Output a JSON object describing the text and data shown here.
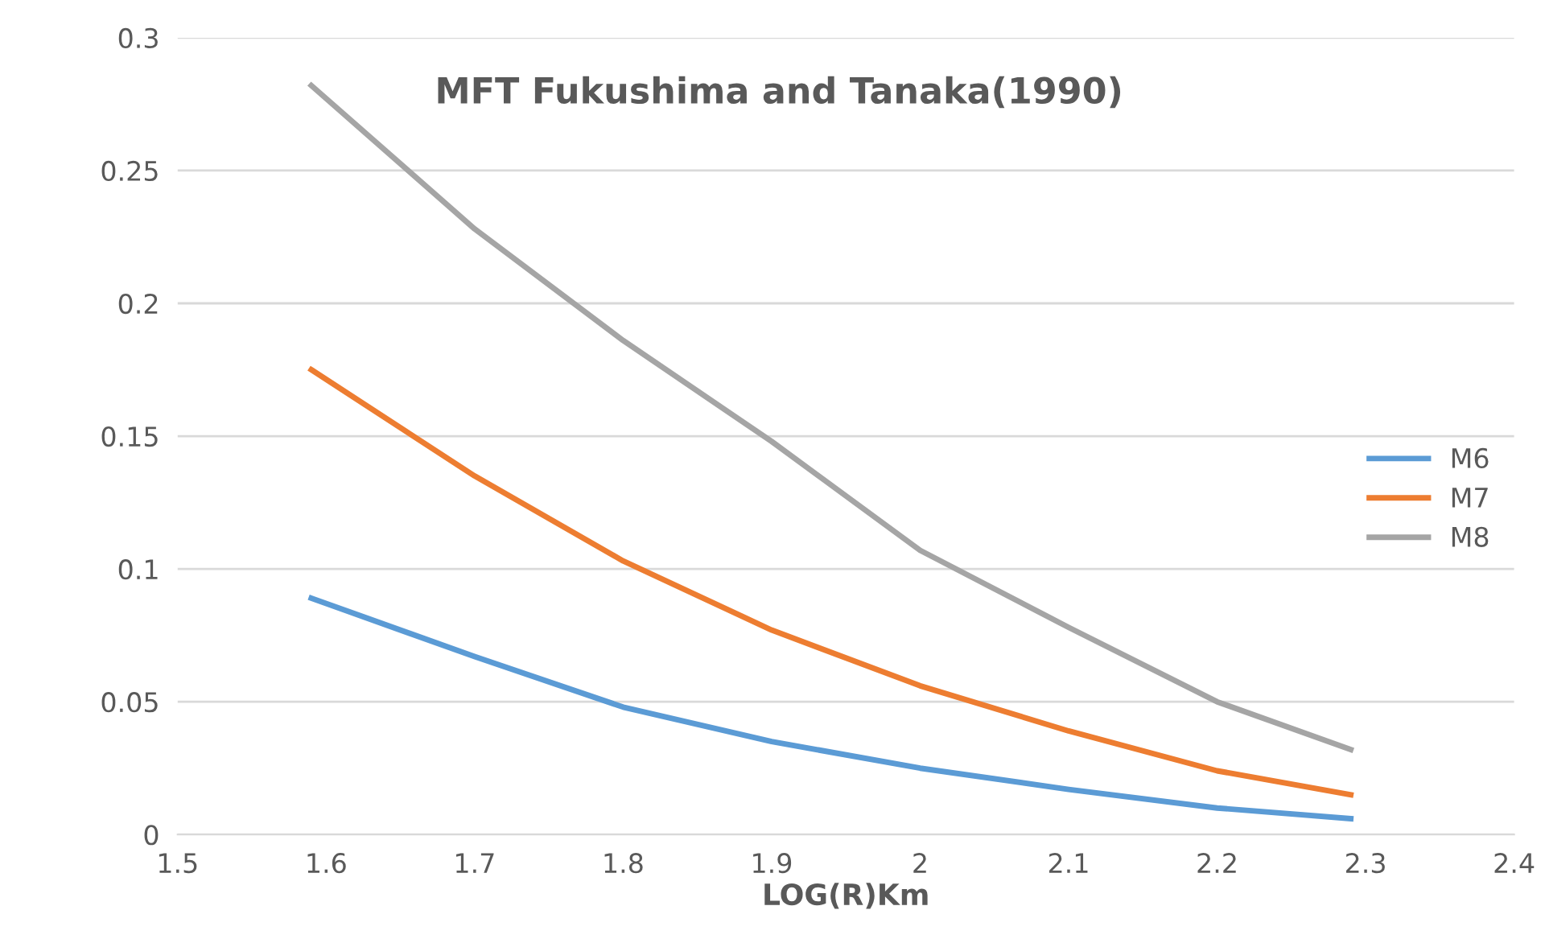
{
  "chart_data": {
    "type": "line",
    "title": "MFT Fukushima and Tanaka(1990)",
    "xlabel": "LOG(R)Km",
    "x": [
      1.59,
      1.7,
      1.8,
      1.9,
      2.0,
      2.1,
      2.2,
      2.29
    ],
    "series": [
      {
        "name": "M6",
        "color": "#5b9bd5",
        "values": [
          0.089,
          0.067,
          0.048,
          0.035,
          0.025,
          0.017,
          0.01,
          0.006
        ]
      },
      {
        "name": "M7",
        "color": "#ed7d31",
        "values": [
          0.175,
          0.135,
          0.103,
          0.077,
          0.056,
          0.039,
          0.024,
          0.015
        ]
      },
      {
        "name": "M8",
        "color": "#a5a5a5",
        "values": [
          0.282,
          0.228,
          0.186,
          0.148,
          0.107,
          0.078,
          0.05,
          0.032
        ]
      }
    ],
    "xlim": [
      1.5,
      2.4
    ],
    "xticks": [
      1.5,
      1.6,
      1.7,
      1.8,
      1.9,
      2,
      2.1,
      2.2,
      2.3,
      2.4
    ],
    "ylim": [
      0,
      0.3
    ],
    "yticks": [
      0,
      0.05,
      0.1,
      0.15,
      0.2,
      0.25,
      0.3
    ],
    "grid": "y",
    "legend": "right",
    "marker": "none",
    "line_style": "solid"
  }
}
